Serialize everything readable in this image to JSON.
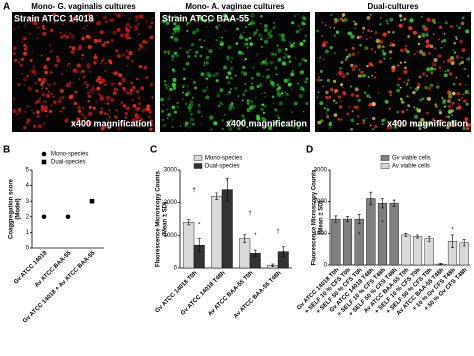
{
  "figure": {
    "panel": "A",
    "images": [
      {
        "title": "Mono- G. vaginalis cultures",
        "strain": "Strain ATCC 14018",
        "magnification": "x400 magnification"
      },
      {
        "title": "Mono- A. vaginae cultures",
        "strain": "Strain ATCC BAA-55",
        "magnification": "x400 magnification"
      },
      {
        "title": "Dual-cultures",
        "magnification": "x400 magnification"
      }
    ]
  },
  "chart_data": [
    {
      "type": "scatter",
      "panel": "B",
      "ylabel": [
        "Coaggregation score",
        "(Model)"
      ],
      "categories": [
        "Gv ATCC 14018",
        "Av ATCC BAA-55",
        "Gv ATCC 14018 + Av ATCC BAA-55"
      ],
      "series": [
        {
          "name": "Mono-species",
          "marker": "circle",
          "color": "#000000",
          "values": [
            2,
            2,
            null
          ]
        },
        {
          "name": "Dual-species",
          "marker": "square",
          "color": "#000000",
          "values": [
            null,
            null,
            3
          ]
        }
      ],
      "ylim": [
        0,
        5
      ],
      "yticks": [
        0,
        1,
        2,
        3,
        4,
        5
      ]
    },
    {
      "type": "bar",
      "panel": "C",
      "ylabel": [
        "Fluorescence Microscopy Counts",
        "(Mean ± SD)"
      ],
      "categories": [
        "Gv ATCC 14018 T0h",
        "Gv ATCC 14018 T48h",
        "Av ATCC BAA-55 T0h",
        "Av ATCC BAA-55 T48h"
      ],
      "series": [
        {
          "name": "Mono-species",
          "color": "#d9d9d9",
          "values": [
            1400,
            2200,
            900,
            80
          ],
          "errors": [
            80,
            100,
            120,
            40
          ]
        },
        {
          "name": "Dual-species",
          "color": "#333333",
          "values": [
            700,
            2400,
            450,
            500
          ],
          "errors": [
            200,
            350,
            100,
            150
          ]
        }
      ],
      "annotations": [
        "†",
        "*",
        "*",
        "†",
        "*",
        "†",
        "*"
      ],
      "ylim": [
        0,
        3000
      ],
      "yticks": [
        0,
        1000,
        2000,
        3000
      ]
    },
    {
      "type": "bar",
      "panel": "D",
      "ylabel": [
        "Fluorescence Microscopy Counts",
        "(Mean ± SD)"
      ],
      "categories": [
        "Gv ATCC 14018 T0h",
        "+ SELF 10 % CFS T0h",
        "+ SELF 50 % CFS T0h",
        "Gv ATCC 14018 T48h",
        "+ SELF 10 % CFS T48h",
        "+ SELF 50 % CFS T48h",
        "Av ATCC BAA-55 T0h",
        "+ SELF 10 % CFS T0h",
        "+ SELF 50 % CFS T0h",
        "Av ATCC BAA-55 T48h",
        "+ 10 % Gv CFS T48h",
        "+ 50 % Gv CFS T48h"
      ],
      "series": [
        {
          "name": "Gv viable cells",
          "color": "#7f7f7f",
          "values": [
            1450,
            1450,
            1450,
            2100,
            1950,
            1950,
            null,
            null,
            null,
            null,
            null,
            null
          ],
          "errors": [
            100,
            80,
            150,
            200,
            150,
            100,
            null,
            null,
            null,
            null,
            null,
            null
          ]
        },
        {
          "name": "Av viable cells",
          "color": "#d9d9d9",
          "values": [
            null,
            null,
            null,
            null,
            null,
            null,
            950,
            900,
            830,
            30,
            750,
            700
          ],
          "errors": [
            null,
            null,
            null,
            null,
            null,
            null,
            50,
            50,
            80,
            20,
            200,
            100
          ]
        }
      ],
      "annotations": [
        "*",
        "*",
        "*"
      ],
      "ylim": [
        0,
        3000
      ],
      "yticks": [
        0,
        1000,
        2000,
        3000
      ]
    }
  ]
}
